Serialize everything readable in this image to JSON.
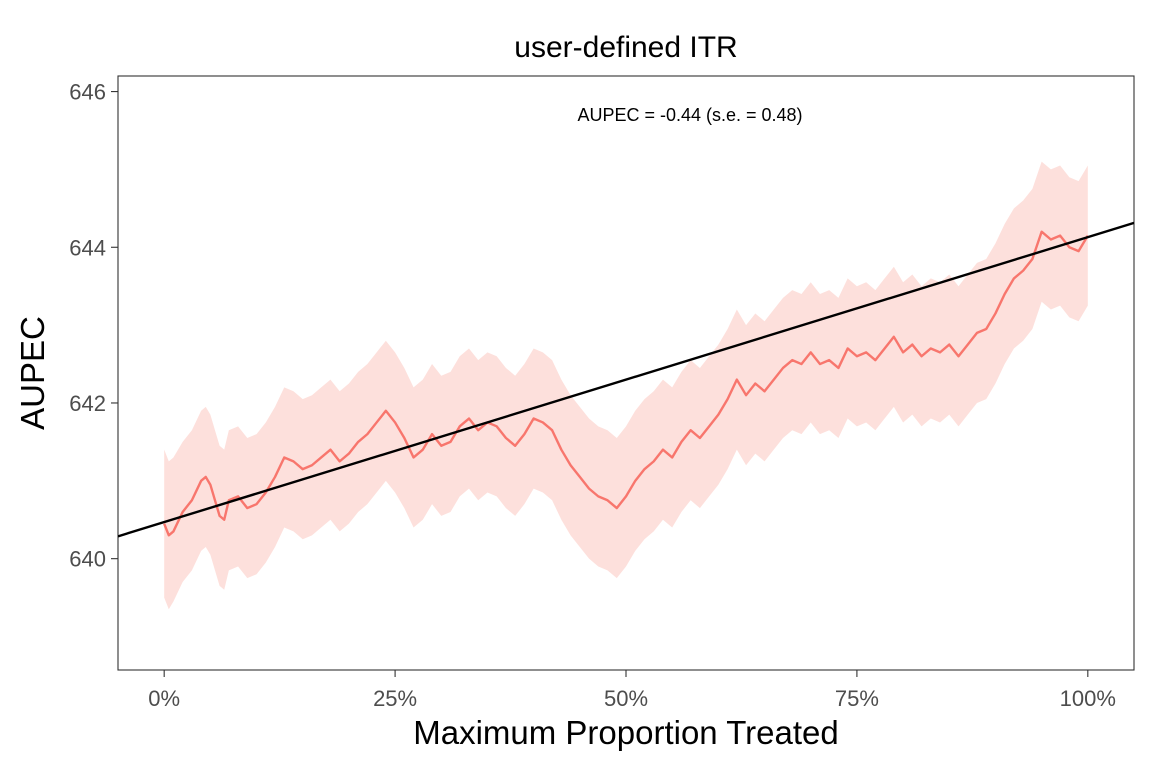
{
  "chart_data": {
    "type": "line",
    "title": "user-defined ITR",
    "xlabel": "Maximum Proportion Treated",
    "ylabel": "AUPEC",
    "annotation": "AUPEC = -0.44 (s.e. = 0.48)",
    "x_ticks": [
      0,
      0.25,
      0.5,
      0.75,
      1.0
    ],
    "x_tick_labels": [
      "0%",
      "25%",
      "50%",
      "75%",
      "100%"
    ],
    "y_ticks": [
      640,
      642,
      644,
      646
    ],
    "y_tick_labels": [
      "640",
      "642",
      "644",
      "646"
    ],
    "xlim": [
      -0.05,
      1.05
    ],
    "ylim": [
      638.57,
      646.2
    ],
    "grid": false,
    "colors": {
      "line": "#f8766d",
      "band": "#fde0dc",
      "reference": "#000000",
      "frame": "#333333"
    },
    "series": [
      {
        "x": [
          0.0,
          0.005,
          0.01,
          0.02,
          0.03,
          0.04,
          0.045,
          0.05,
          0.055,
          0.06,
          0.065,
          0.07,
          0.08,
          0.09,
          0.1,
          0.11,
          0.12,
          0.13,
          0.14,
          0.15,
          0.16,
          0.17,
          0.18,
          0.19,
          0.2,
          0.21,
          0.22,
          0.23,
          0.24,
          0.25,
          0.26,
          0.27,
          0.28,
          0.29,
          0.3,
          0.31,
          0.32,
          0.33,
          0.34,
          0.35,
          0.36,
          0.37,
          0.38,
          0.39,
          0.4,
          0.41,
          0.42,
          0.43,
          0.44,
          0.45,
          0.46,
          0.47,
          0.48,
          0.49,
          0.5,
          0.51,
          0.52,
          0.53,
          0.54,
          0.55,
          0.56,
          0.57,
          0.58,
          0.59,
          0.6,
          0.61,
          0.62,
          0.63,
          0.64,
          0.65,
          0.66,
          0.67,
          0.68,
          0.69,
          0.7,
          0.71,
          0.72,
          0.73,
          0.74,
          0.75,
          0.76,
          0.77,
          0.78,
          0.79,
          0.8,
          0.81,
          0.82,
          0.83,
          0.84,
          0.85,
          0.86,
          0.87,
          0.88,
          0.89,
          0.9,
          0.91,
          0.92,
          0.93,
          0.94,
          0.95,
          0.96,
          0.97,
          0.98,
          0.99,
          1.0
        ],
        "y": [
          640.45,
          640.3,
          640.35,
          640.6,
          640.75,
          641.0,
          641.05,
          640.95,
          640.75,
          640.55,
          640.5,
          640.75,
          640.8,
          640.65,
          640.7,
          640.85,
          641.05,
          641.3,
          641.25,
          641.15,
          641.2,
          641.3,
          641.4,
          641.25,
          641.35,
          641.5,
          641.6,
          641.75,
          641.9,
          641.75,
          641.55,
          641.3,
          641.4,
          641.6,
          641.45,
          641.5,
          641.7,
          641.8,
          641.65,
          641.75,
          641.7,
          641.55,
          641.45,
          641.6,
          641.8,
          641.75,
          641.65,
          641.4,
          641.2,
          641.05,
          640.9,
          640.8,
          640.75,
          640.65,
          640.8,
          641.0,
          641.15,
          641.25,
          641.4,
          641.3,
          641.5,
          641.65,
          641.55,
          641.7,
          641.85,
          642.05,
          642.3,
          642.1,
          642.25,
          642.15,
          642.3,
          642.45,
          642.55,
          642.5,
          642.65,
          642.5,
          642.55,
          642.45,
          642.7,
          642.6,
          642.65,
          642.55,
          642.7,
          642.85,
          642.65,
          642.75,
          642.6,
          642.7,
          642.65,
          642.75,
          642.6,
          642.75,
          642.9,
          642.95,
          643.15,
          643.4,
          643.6,
          643.7,
          643.85,
          644.2,
          644.1,
          644.15,
          644.0,
          643.95,
          644.15
        ],
        "lower": [
          639.5,
          639.35,
          639.45,
          639.7,
          639.85,
          640.1,
          640.15,
          640.05,
          639.85,
          639.65,
          639.6,
          639.85,
          639.9,
          639.75,
          639.8,
          639.95,
          640.15,
          640.4,
          640.35,
          640.25,
          640.3,
          640.4,
          640.5,
          640.35,
          640.45,
          640.6,
          640.7,
          640.85,
          641.0,
          640.85,
          640.65,
          640.4,
          640.5,
          640.7,
          640.55,
          640.6,
          640.8,
          640.9,
          640.75,
          640.85,
          640.8,
          640.65,
          640.55,
          640.7,
          640.9,
          640.85,
          640.75,
          640.5,
          640.3,
          640.15,
          640.0,
          639.9,
          639.85,
          639.75,
          639.9,
          640.1,
          640.25,
          640.35,
          640.5,
          640.4,
          640.6,
          640.75,
          640.65,
          640.8,
          640.95,
          641.15,
          641.4,
          641.2,
          641.35,
          641.25,
          641.4,
          641.55,
          641.65,
          641.6,
          641.75,
          641.6,
          641.65,
          641.55,
          641.8,
          641.7,
          641.75,
          641.65,
          641.8,
          641.95,
          641.75,
          641.85,
          641.7,
          641.8,
          641.75,
          641.85,
          641.7,
          641.85,
          642.0,
          642.05,
          642.25,
          642.5,
          642.7,
          642.8,
          642.95,
          643.3,
          643.2,
          643.25,
          643.1,
          643.05,
          643.25
        ],
        "upper": [
          641.4,
          641.25,
          641.3,
          641.5,
          641.65,
          641.9,
          641.95,
          641.85,
          641.65,
          641.45,
          641.4,
          641.65,
          641.7,
          641.55,
          641.6,
          641.75,
          641.95,
          642.2,
          642.15,
          642.05,
          642.1,
          642.2,
          642.3,
          642.15,
          642.25,
          642.4,
          642.5,
          642.65,
          642.8,
          642.65,
          642.45,
          642.2,
          642.3,
          642.5,
          642.35,
          642.4,
          642.6,
          642.7,
          642.55,
          642.65,
          642.6,
          642.45,
          642.35,
          642.5,
          642.7,
          642.65,
          642.55,
          642.3,
          642.1,
          641.95,
          641.8,
          641.7,
          641.65,
          641.55,
          641.7,
          641.9,
          642.05,
          642.15,
          642.3,
          642.2,
          642.4,
          642.55,
          642.45,
          642.6,
          642.75,
          642.95,
          643.2,
          643.0,
          643.15,
          643.05,
          643.2,
          643.35,
          643.45,
          643.4,
          643.55,
          643.4,
          643.45,
          643.35,
          643.6,
          643.5,
          643.55,
          643.45,
          643.6,
          643.75,
          643.55,
          643.65,
          643.5,
          643.6,
          643.55,
          643.65,
          643.5,
          643.65,
          643.8,
          643.85,
          644.05,
          644.3,
          644.5,
          644.6,
          644.75,
          645.1,
          645.0,
          645.05,
          644.9,
          644.85,
          645.05
        ]
      }
    ],
    "reference_line": {
      "intercept": 640.47,
      "slope": 3.66
    }
  }
}
